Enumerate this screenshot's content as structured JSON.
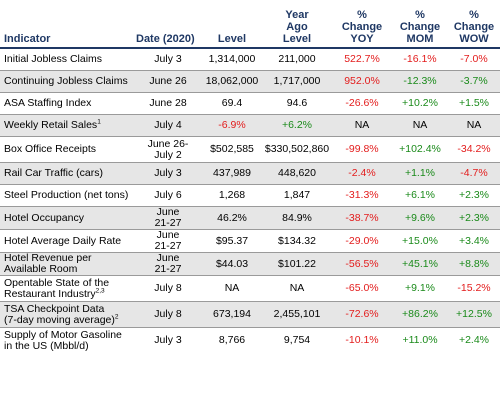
{
  "header": {
    "indicator": "Indicator",
    "date": "Date (2020)",
    "level": "Level",
    "year_ago_1": "Year",
    "year_ago_2": "Ago",
    "year_ago_3": "Level",
    "yoy_1": "%",
    "yoy_2": "Change",
    "yoy_3": "YOY",
    "mom_1": "%",
    "mom_2": "Change",
    "mom_3": "MOM",
    "wow_1": "%",
    "wow_2": "Change",
    "wow_3": "WOW"
  },
  "rows": [
    {
      "ind": "Initial Jobless Claims",
      "date": "July 3",
      "level": "1,314,000",
      "year_ago": "211,000",
      "yoy": "522.7%",
      "mom": "-16.1%",
      "wow": "-7.0%"
    },
    {
      "ind": "Continuing Jobless Claims",
      "date": "June 26",
      "level": "18,062,000",
      "year_ago": "1,717,000",
      "yoy": "952.0%",
      "mom": "-12.3%",
      "wow": "-3.7%"
    },
    {
      "ind": "ASA Staffing Index",
      "date": "June 28",
      "level": "69.4",
      "year_ago": "94.6",
      "yoy": "-26.6%",
      "mom": "+10.2%",
      "wow": "+1.5%"
    },
    {
      "ind": "Weekly Retail Sales",
      "sup": "1",
      "date": "July 4",
      "level": "-6.9%",
      "year_ago": "+6.2%",
      "yoy": "NA",
      "mom": "NA",
      "wow": "NA"
    },
    {
      "ind": "Box Office Receipts",
      "date_1": "June 26-",
      "date_2": "July 2",
      "level": "$502,585",
      "year_ago": "$330,502,860",
      "yoy": "-99.8%",
      "mom": "+102.4%",
      "wow": "-34.2%"
    },
    {
      "ind": "Rail Car Traffic (cars)",
      "date": "July 3",
      "level": "437,989",
      "year_ago": "448,620",
      "yoy": "-2.4%",
      "mom": "+1.1%",
      "wow": "-4.7%"
    },
    {
      "ind": "Steel Production (net tons)",
      "date": "July 6",
      "level": "1,268",
      "year_ago": "1,847",
      "yoy": "-31.3%",
      "mom": "+6.1%",
      "wow": "+2.3%"
    },
    {
      "ind": "Hotel Occupancy",
      "date_1": "June",
      "date_2": "21-27",
      "level": "46.2%",
      "year_ago": "84.9%",
      "yoy": "-38.7%",
      "mom": "+9.6%",
      "wow": "+2.3%"
    },
    {
      "ind": "Hotel Average Daily Rate",
      "date_1": "June",
      "date_2": "21-27",
      "level": "$95.37",
      "year_ago": "$134.32",
      "yoy": "-29.0%",
      "mom": "+15.0%",
      "wow": "+3.4%"
    },
    {
      "ind_1": "Hotel Revenue per",
      "ind_2": "Available Room",
      "date_1": "June",
      "date_2": "21-27",
      "level": "$44.03",
      "year_ago": "$101.22",
      "yoy": "-56.5%",
      "mom": "+45.1%",
      "wow": "+8.8%"
    },
    {
      "ind_1": "Opentable State of the",
      "ind_2": "Restaurant Industry",
      "sup": "2,3",
      "date": "July 8",
      "level": "NA",
      "year_ago": "NA",
      "yoy": "-65.0%",
      "mom": "+9.1%",
      "wow": "-15.2%"
    },
    {
      "ind_1": "TSA Checkpoint Data",
      "ind_2": "(7-day moving average)",
      "sup": "2",
      "date": "July 8",
      "level": "673,194",
      "year_ago": "2,455,101",
      "yoy": "-72.6%",
      "mom": "+86.2%",
      "wow": "+12.5%"
    },
    {
      "ind_1": "Supply of Motor Gasoline",
      "ind_2": "in the US (Mbbl/d)",
      "date": "July 3",
      "level": "8,766",
      "year_ago": "9,754",
      "yoy": "-10.1%",
      "mom": "+11.0%",
      "wow": "+2.4%"
    }
  ],
  "colors": {
    "header": "#1f3864",
    "negative": "#e31c1c",
    "positive": "#1a8a1a",
    "stripe": "#e6e6e6"
  }
}
